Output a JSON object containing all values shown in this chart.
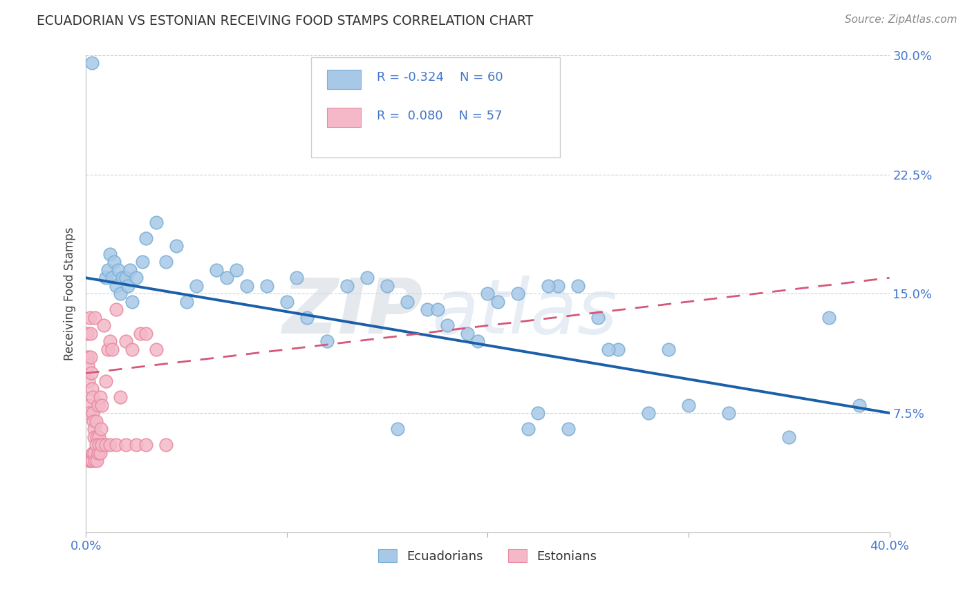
{
  "title": "ECUADORIAN VS ESTONIAN RECEIVING FOOD STAMPS CORRELATION CHART",
  "source_text": "Source: ZipAtlas.com",
  "ylabel": "Receiving Food Stamps",
  "xlim": [
    0.0,
    40.0
  ],
  "ylim": [
    0.0,
    30.0
  ],
  "xticks": [
    0.0,
    10.0,
    20.0,
    30.0,
    40.0
  ],
  "yticks": [
    0.0,
    7.5,
    15.0,
    22.5,
    30.0
  ],
  "yticklabels": [
    "",
    "7.5%",
    "15.0%",
    "22.5%",
    "30.0%"
  ],
  "xticklabels_show": [
    "0.0%",
    "",
    "",
    "",
    "40.0%"
  ],
  "grid_color": "#cccccc",
  "background_color": "#ffffff",
  "watermark_text": "ZIPAtlas",
  "legend_R1": "-0.324",
  "legend_N1": "60",
  "legend_R2": "0.080",
  "legend_N2": "57",
  "blue_color": "#a8c8e8",
  "blue_edge_color": "#7aafd4",
  "blue_line_color": "#1a5fa8",
  "pink_color": "#f4b8c8",
  "pink_edge_color": "#e88aa0",
  "pink_line_color": "#d45878",
  "axis_label_color": "#4477cc",
  "ecuadorian_x": [
    0.3,
    1.0,
    1.1,
    1.2,
    1.3,
    1.4,
    1.5,
    1.6,
    1.7,
    1.8,
    2.0,
    2.1,
    2.2,
    2.3,
    2.5,
    2.8,
    3.0,
    3.5,
    4.0,
    4.5,
    5.0,
    5.5,
    6.5,
    7.0,
    7.5,
    8.0,
    9.0,
    10.0,
    11.0,
    12.0,
    13.0,
    14.0,
    15.0,
    16.0,
    17.0,
    18.0,
    19.0,
    20.5,
    21.5,
    22.5,
    23.5,
    24.5,
    25.5,
    26.5,
    28.0,
    30.0,
    32.0,
    35.0,
    37.0,
    38.5,
    10.5,
    15.5,
    17.5,
    19.5,
    20.0,
    22.0,
    23.0,
    24.0,
    26.0,
    29.0
  ],
  "ecuadorian_y": [
    29.5,
    16.0,
    16.5,
    17.5,
    16.0,
    17.0,
    15.5,
    16.5,
    15.0,
    16.0,
    16.0,
    15.5,
    16.5,
    14.5,
    16.0,
    17.0,
    18.5,
    19.5,
    17.0,
    18.0,
    14.5,
    15.5,
    16.5,
    16.0,
    16.5,
    15.5,
    15.5,
    14.5,
    13.5,
    12.0,
    15.5,
    16.0,
    15.5,
    14.5,
    14.0,
    13.0,
    12.5,
    14.5,
    15.0,
    7.5,
    15.5,
    15.5,
    13.5,
    11.5,
    7.5,
    8.0,
    7.5,
    6.0,
    13.5,
    8.0,
    16.0,
    6.5,
    14.0,
    12.0,
    15.0,
    6.5,
    15.5,
    6.5,
    11.5,
    11.5
  ],
  "estonian_x": [
    0.05,
    0.08,
    0.1,
    0.12,
    0.15,
    0.18,
    0.2,
    0.22,
    0.25,
    0.27,
    0.3,
    0.32,
    0.35,
    0.38,
    0.4,
    0.42,
    0.45,
    0.5,
    0.55,
    0.6,
    0.65,
    0.7,
    0.75,
    0.8,
    0.85,
    0.9,
    1.0,
    1.1,
    1.2,
    1.3,
    1.5,
    1.7,
    2.0,
    2.3,
    2.7,
    3.0,
    3.5,
    0.15,
    0.2,
    0.25,
    0.3,
    0.35,
    0.4,
    0.45,
    0.5,
    0.55,
    0.6,
    0.65,
    0.7,
    0.8,
    1.0,
    1.2,
    1.5,
    2.0,
    2.5,
    3.0,
    4.0
  ],
  "estonian_y": [
    12.5,
    11.0,
    10.5,
    9.5,
    8.0,
    7.5,
    13.5,
    12.5,
    11.0,
    10.0,
    9.0,
    8.5,
    7.5,
    7.0,
    6.5,
    6.0,
    13.5,
    7.0,
    6.0,
    8.0,
    6.0,
    8.5,
    6.5,
    8.0,
    5.5,
    13.0,
    9.5,
    11.5,
    12.0,
    11.5,
    14.0,
    8.5,
    12.0,
    11.5,
    12.5,
    12.5,
    11.5,
    4.5,
    4.5,
    4.5,
    4.5,
    5.0,
    5.0,
    4.5,
    5.5,
    4.5,
    5.0,
    5.5,
    5.0,
    5.5,
    5.5,
    5.5,
    5.5,
    5.5,
    5.5,
    5.5,
    5.5
  ]
}
